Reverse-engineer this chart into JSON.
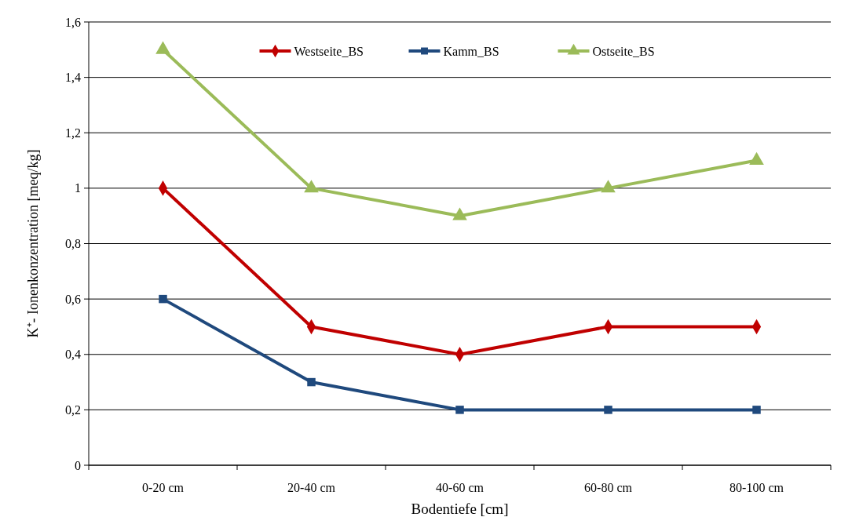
{
  "chart_data": {
    "type": "line",
    "xlabel": "Bodentiefe [cm]",
    "ylabel": "K⁺- Ionenkonzentration [meq/kg]",
    "categories": [
      "0-20 cm",
      "20-40 cm",
      "40-60 cm",
      "60-80 cm",
      "80-100 cm"
    ],
    "series": [
      {
        "name": "Westseite_BS",
        "color": "#c00000",
        "marker": "diamond",
        "values": [
          1.0,
          0.5,
          0.4,
          0.5,
          0.5
        ]
      },
      {
        "name": "Kamm_BS",
        "color": "#1f497d",
        "marker": "square",
        "values": [
          0.6,
          0.3,
          0.2,
          0.2,
          0.2
        ]
      },
      {
        "name": "Ostseite_BS",
        "color": "#9bbb59",
        "marker": "triangle",
        "values": [
          1.5,
          1.0,
          0.9,
          1.0,
          1.1
        ]
      }
    ],
    "ylim": [
      0,
      1.6
    ],
    "yticks": [
      {
        "value": 0,
        "label": "0"
      },
      {
        "value": 0.2,
        "label": "0,2"
      },
      {
        "value": 0.4,
        "label": "0,4"
      },
      {
        "value": 0.6,
        "label": "0,6"
      },
      {
        "value": 0.8,
        "label": "0,8"
      },
      {
        "value": 1,
        "label": "1"
      },
      {
        "value": 1.2,
        "label": "1,2"
      },
      {
        "value": 1.4,
        "label": "1,4"
      },
      {
        "value": 1.6,
        "label": "1,6"
      }
    ],
    "grid": "y",
    "legend": "top",
    "line_style": "solid"
  }
}
